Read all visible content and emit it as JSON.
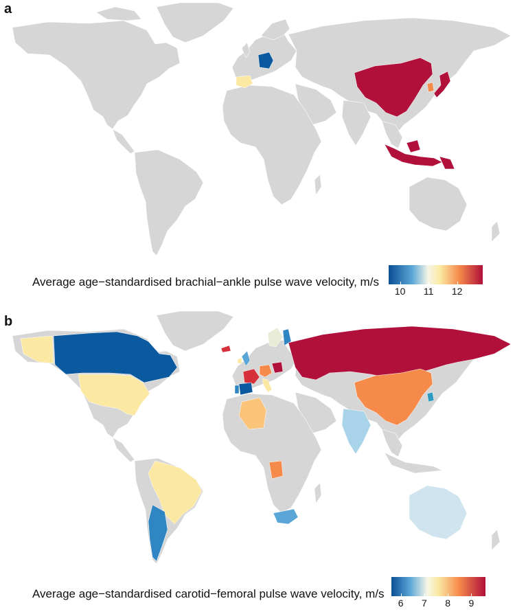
{
  "panels": {
    "a": {
      "label": "a",
      "legend_title": "Average age−standardised brachial−ankle pulse wave velocity, m/s",
      "scale": {
        "min": 9.6,
        "max": 12.9,
        "ticks": [
          "10",
          "11",
          "12"
        ]
      },
      "colored_countries": [
        "Germany",
        "Spain",
        "China",
        "Japan",
        "South Korea",
        "Indonesia",
        "Papua New Guinea"
      ]
    },
    "b": {
      "label": "b",
      "legend_title": "Average age−standardised carotid−femoral pulse wave velocity, m/s",
      "scale": {
        "min": 5.6,
        "max": 9.6,
        "ticks": [
          "6",
          "7",
          "8",
          "9"
        ]
      },
      "colored_countries": [
        "Canada",
        "United States",
        "Brazil",
        "Argentina",
        "Iceland",
        "Portugal",
        "Spain",
        "France",
        "Italy",
        "Algeria",
        "Angola",
        "South Africa",
        "Russia",
        "China",
        "India",
        "Australia",
        "South Korea",
        "Finland",
        "Sweden",
        "Poland",
        "Ireland",
        "United Kingdom"
      ]
    }
  },
  "colors": {
    "land": "#d6d6d6",
    "dark_blue": "#0b5aa0",
    "blue": "#2f86c3",
    "light_blue": "#a9d3e8",
    "pale_yellow": "#fbe8a2",
    "orange": "#f58a4b",
    "red": "#d6303b",
    "dark_red": "#b0103a"
  }
}
